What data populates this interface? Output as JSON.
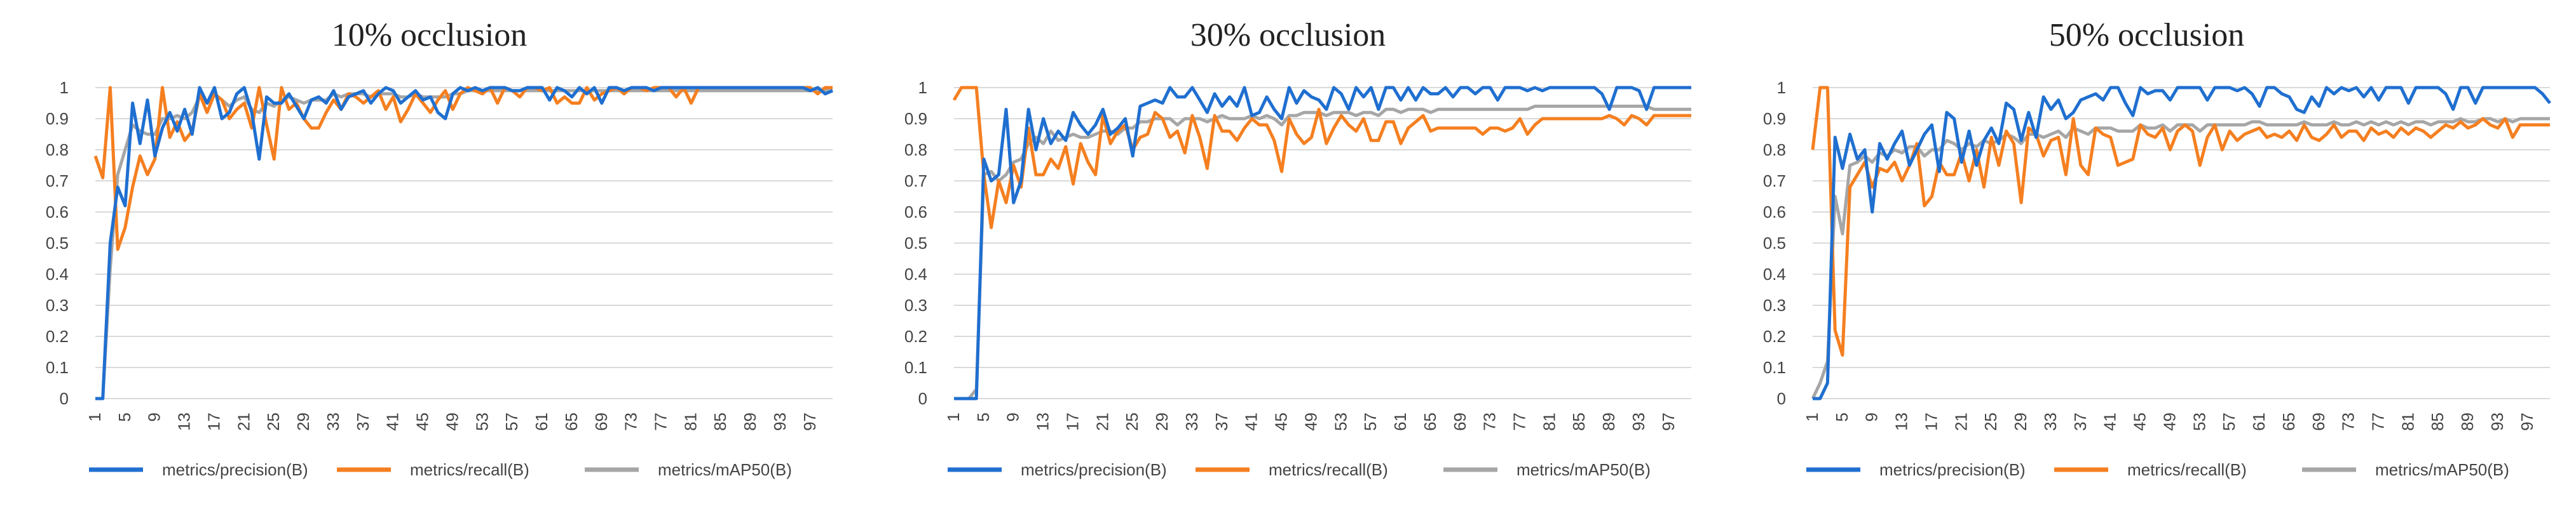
{
  "colors": {
    "precision": "#1f6fd0",
    "recall": "#f57f20",
    "map50": "#a6a6a6",
    "grid": "#d9d9d9",
    "text": "#444444"
  },
  "chart_data": [
    {
      "type": "line",
      "title": "10% occlusion",
      "ylim": [
        0,
        1
      ],
      "yticks": [
        "0",
        "0.1",
        "0.2",
        "0.3",
        "0.4",
        "0.5",
        "0.6",
        "0.7",
        "0.8",
        "0.9",
        "1"
      ],
      "xlim": [
        1,
        100
      ],
      "xticks": [
        "1",
        "5",
        "9",
        "13",
        "17",
        "21",
        "25",
        "29",
        "33",
        "37",
        "41",
        "45",
        "49",
        "53",
        "57",
        "61",
        "65",
        "69",
        "73",
        "77",
        "81",
        "85",
        "89",
        "93",
        "97"
      ],
      "legend_position": "bottom",
      "series": [
        {
          "name": "metrics/precision(B)",
          "color": "#1f6fd0",
          "values": [
            0,
            0,
            0.5,
            0.68,
            0.62,
            0.95,
            0.82,
            0.96,
            0.78,
            0.87,
            0.92,
            0.86,
            0.93,
            0.85,
            1,
            0.95,
            1,
            0.9,
            0.92,
            0.98,
            1,
            0.92,
            0.77,
            0.97,
            0.95,
            0.95,
            0.98,
            0.94,
            0.9,
            0.96,
            0.97,
            0.95,
            0.99,
            0.93,
            0.97,
            0.98,
            0.99,
            0.95,
            0.98,
            1,
            0.99,
            0.95,
            0.97,
            0.99,
            0.96,
            0.97,
            0.92,
            0.9,
            0.98,
            1,
            0.99,
            1,
            0.99,
            1,
            1,
            1,
            0.99,
            0.99,
            1,
            1,
            1,
            0.96,
            1,
            0.99,
            0.97,
            1,
            0.98,
            1,
            0.95,
            1,
            1,
            0.99,
            1,
            1,
            1,
            0.99,
            1,
            1,
            1,
            1,
            1,
            1,
            1,
            1,
            1,
            1,
            1,
            1,
            1,
            1,
            1,
            1,
            1,
            1,
            1,
            1,
            0.99,
            1,
            0.98,
            0.99
          ]
        },
        {
          "name": "metrics/recall(B)",
          "color": "#f57f20",
          "values": [
            0.78,
            0.71,
            1,
            0.48,
            0.55,
            0.68,
            0.78,
            0.72,
            0.77,
            1,
            0.84,
            0.89,
            0.83,
            0.86,
            0.98,
            0.92,
            0.98,
            0.96,
            0.9,
            0.93,
            0.95,
            0.87,
            1,
            0.88,
            0.77,
            1,
            0.93,
            0.95,
            0.9,
            0.87,
            0.87,
            0.92,
            0.96,
            0.93,
            0.98,
            0.97,
            0.95,
            0.97,
            0.99,
            0.93,
            0.97,
            0.89,
            0.93,
            0.98,
            0.95,
            0.92,
            0.96,
            0.99,
            0.93,
            0.98,
            1,
            0.99,
            0.98,
            1,
            0.95,
            1,
            0.99,
            0.97,
            1,
            1,
            0.99,
            1,
            0.95,
            0.97,
            0.95,
            0.95,
            1,
            0.96,
            0.98,
            0.99,
            1,
            0.98,
            1,
            1,
            0.99,
            1,
            1,
            1,
            0.97,
            1,
            0.95,
            1,
            1,
            1,
            1,
            1,
            1,
            1,
            1,
            1,
            1,
            1,
            1,
            1,
            1,
            1,
            1,
            0.98,
            1,
            1
          ]
        },
        {
          "name": "metrics/mAP50(B)",
          "color": "#a6a6a6",
          "values": [
            0,
            0,
            0.42,
            0.72,
            0.8,
            0.88,
            0.86,
            0.85,
            0.85,
            0.9,
            0.9,
            0.91,
            0.9,
            0.92,
            0.97,
            0.95,
            0.98,
            0.96,
            0.94,
            0.96,
            0.97,
            0.93,
            0.92,
            0.95,
            0.94,
            0.96,
            0.97,
            0.96,
            0.95,
            0.96,
            0.96,
            0.96,
            0.98,
            0.97,
            0.98,
            0.98,
            0.98,
            0.97,
            0.98,
            0.98,
            0.98,
            0.97,
            0.97,
            0.98,
            0.97,
            0.97,
            0.97,
            0.97,
            0.98,
            0.98,
            0.99,
            0.99,
            0.99,
            0.99,
            0.99,
            0.99,
            0.99,
            0.99,
            0.99,
            0.99,
            0.99,
            0.99,
            0.99,
            0.99,
            0.99,
            0.99,
            0.99,
            0.99,
            0.99,
            0.99,
            0.99,
            0.99,
            0.99,
            0.99,
            0.99,
            0.99,
            0.99,
            0.99,
            0.99,
            0.99,
            0.99,
            0.99,
            0.99,
            0.99,
            0.99,
            0.99,
            0.99,
            0.99,
            0.99,
            0.99,
            0.99,
            0.99,
            0.99,
            0.99,
            0.99,
            0.99,
            0.99,
            0.99,
            0.99,
            0.99
          ]
        }
      ]
    },
    {
      "type": "line",
      "title": "30% occlusion",
      "ylim": [
        0,
        1
      ],
      "yticks": [
        "0",
        "0.1",
        "0.2",
        "0.3",
        "0.4",
        "0.5",
        "0.6",
        "0.7",
        "0.8",
        "0.9",
        "1"
      ],
      "xlim": [
        1,
        100
      ],
      "xticks": [
        "1",
        "5",
        "9",
        "13",
        "17",
        "21",
        "25",
        "29",
        "33",
        "37",
        "41",
        "45",
        "49",
        "53",
        "57",
        "61",
        "65",
        "69",
        "73",
        "77",
        "81",
        "85",
        "89",
        "93",
        "97"
      ],
      "legend_position": "bottom",
      "series": [
        {
          "name": "metrics/precision(B)",
          "color": "#1f6fd0",
          "values": [
            0,
            0,
            0,
            0,
            0.77,
            0.7,
            0.72,
            0.93,
            0.63,
            0.7,
            0.93,
            0.8,
            0.9,
            0.82,
            0.86,
            0.83,
            0.92,
            0.88,
            0.85,
            0.88,
            0.93,
            0.85,
            0.87,
            0.9,
            0.78,
            0.94,
            0.95,
            0.96,
            0.95,
            1,
            0.97,
            0.97,
            1,
            0.96,
            0.92,
            0.98,
            0.94,
            0.97,
            0.94,
            1,
            0.91,
            0.92,
            0.97,
            0.93,
            0.9,
            1,
            0.95,
            0.99,
            0.97,
            0.96,
            0.93,
            1,
            0.98,
            0.93,
            1,
            0.97,
            1,
            0.93,
            1,
            1,
            0.96,
            1,
            0.96,
            1,
            0.98,
            0.98,
            1,
            0.97,
            1,
            1,
            0.98,
            1,
            1,
            0.96,
            1,
            1,
            1,
            0.99,
            1,
            0.99,
            1,
            1,
            1,
            1,
            1,
            1,
            1,
            0.98,
            0.93,
            1,
            1,
            1,
            0.99,
            0.93,
            1,
            1,
            1,
            1,
            1,
            1
          ]
        },
        {
          "name": "metrics/recall(B)",
          "color": "#f57f20",
          "values": [
            0.96,
            1,
            1,
            1,
            0.72,
            0.55,
            0.7,
            0.63,
            0.75,
            0.68,
            0.87,
            0.72,
            0.72,
            0.77,
            0.74,
            0.81,
            0.69,
            0.82,
            0.76,
            0.72,
            0.91,
            0.82,
            0.86,
            0.88,
            0.8,
            0.84,
            0.85,
            0.92,
            0.9,
            0.84,
            0.86,
            0.79,
            0.91,
            0.84,
            0.74,
            0.91,
            0.86,
            0.86,
            0.83,
            0.87,
            0.9,
            0.88,
            0.88,
            0.83,
            0.73,
            0.9,
            0.85,
            0.82,
            0.84,
            0.93,
            0.82,
            0.87,
            0.91,
            0.88,
            0.86,
            0.9,
            0.83,
            0.83,
            0.89,
            0.89,
            0.82,
            0.87,
            0.89,
            0.91,
            0.86,
            0.87,
            0.87,
            0.87,
            0.87,
            0.87,
            0.87,
            0.85,
            0.87,
            0.87,
            0.86,
            0.87,
            0.9,
            0.85,
            0.88,
            0.9,
            0.9,
            0.9,
            0.9,
            0.9,
            0.9,
            0.9,
            0.9,
            0.9,
            0.91,
            0.9,
            0.88,
            0.91,
            0.9,
            0.88,
            0.91,
            0.91,
            0.91,
            0.91,
            0.91,
            0.91
          ]
        },
        {
          "name": "metrics/mAP50(B)",
          "color": "#a6a6a6",
          "values": [
            0,
            0,
            0,
            0.03,
            0.72,
            0.73,
            0.7,
            0.72,
            0.76,
            0.77,
            0.82,
            0.84,
            0.82,
            0.86,
            0.83,
            0.84,
            0.85,
            0.84,
            0.84,
            0.85,
            0.86,
            0.86,
            0.85,
            0.87,
            0.87,
            0.89,
            0.89,
            0.9,
            0.9,
            0.9,
            0.88,
            0.9,
            0.9,
            0.9,
            0.89,
            0.9,
            0.91,
            0.9,
            0.9,
            0.9,
            0.91,
            0.9,
            0.91,
            0.9,
            0.88,
            0.91,
            0.91,
            0.92,
            0.92,
            0.92,
            0.91,
            0.92,
            0.92,
            0.92,
            0.91,
            0.92,
            0.92,
            0.91,
            0.93,
            0.93,
            0.92,
            0.93,
            0.93,
            0.93,
            0.92,
            0.93,
            0.93,
            0.93,
            0.93,
            0.93,
            0.93,
            0.93,
            0.93,
            0.93,
            0.93,
            0.93,
            0.93,
            0.93,
            0.94,
            0.94,
            0.94,
            0.94,
            0.94,
            0.94,
            0.94,
            0.94,
            0.94,
            0.94,
            0.94,
            0.94,
            0.94,
            0.94,
            0.94,
            0.94,
            0.93,
            0.93,
            0.93,
            0.93,
            0.93,
            0.93
          ]
        }
      ]
    },
    {
      "type": "line",
      "title": "50% occlusion",
      "ylim": [
        0,
        1
      ],
      "yticks": [
        "0",
        "0.1",
        "0.2",
        "0.3",
        "0.4",
        "0.5",
        "0.6",
        "0.7",
        "0.8",
        "0.9",
        "1"
      ],
      "xlim": [
        1,
        100
      ],
      "xticks": [
        "1",
        "5",
        "9",
        "13",
        "17",
        "21",
        "25",
        "29",
        "33",
        "37",
        "41",
        "45",
        "49",
        "53",
        "57",
        "61",
        "65",
        "69",
        "73",
        "77",
        "81",
        "85",
        "89",
        "93",
        "97"
      ],
      "legend_position": "bottom",
      "series": [
        {
          "name": "metrics/precision(B)",
          "color": "#1f6fd0",
          "values": [
            0,
            0,
            0.05,
            0.84,
            0.74,
            0.85,
            0.77,
            0.8,
            0.6,
            0.82,
            0.77,
            0.82,
            0.86,
            0.75,
            0.8,
            0.85,
            0.88,
            0.73,
            0.92,
            0.9,
            0.76,
            0.86,
            0.75,
            0.83,
            0.87,
            0.82,
            0.95,
            0.93,
            0.83,
            0.92,
            0.84,
            0.97,
            0.93,
            0.96,
            0.9,
            0.92,
            0.96,
            0.97,
            0.98,
            0.96,
            1,
            1,
            0.95,
            0.91,
            1,
            0.98,
            0.99,
            0.99,
            0.96,
            1,
            1,
            1,
            1,
            0.96,
            1,
            1,
            1,
            0.99,
            1,
            0.98,
            0.94,
            1,
            1,
            0.98,
            0.97,
            0.93,
            0.92,
            0.97,
            0.94,
            1,
            0.98,
            1,
            0.99,
            1,
            0.97,
            1,
            0.96,
            1,
            1,
            1,
            0.95,
            1,
            1,
            1,
            1,
            0.98,
            0.93,
            1,
            1,
            0.95,
            1,
            1,
            1,
            1,
            1,
            1,
            1,
            1,
            0.98,
            0.95
          ]
        },
        {
          "name": "metrics/recall(B)",
          "color": "#f57f20",
          "values": [
            0.8,
            1,
            1,
            0.22,
            0.14,
            0.68,
            0.72,
            0.76,
            0.68,
            0.74,
            0.73,
            0.76,
            0.7,
            0.75,
            0.82,
            0.62,
            0.65,
            0.76,
            0.72,
            0.72,
            0.79,
            0.7,
            0.8,
            0.68,
            0.84,
            0.75,
            0.86,
            0.82,
            0.63,
            0.87,
            0.85,
            0.78,
            0.83,
            0.84,
            0.72,
            0.9,
            0.75,
            0.72,
            0.87,
            0.85,
            0.84,
            0.75,
            0.76,
            0.77,
            0.88,
            0.85,
            0.84,
            0.87,
            0.8,
            0.86,
            0.88,
            0.86,
            0.75,
            0.84,
            0.88,
            0.8,
            0.86,
            0.83,
            0.85,
            0.86,
            0.87,
            0.84,
            0.85,
            0.84,
            0.86,
            0.83,
            0.88,
            0.84,
            0.83,
            0.85,
            0.88,
            0.84,
            0.86,
            0.86,
            0.83,
            0.87,
            0.85,
            0.86,
            0.84,
            0.87,
            0.85,
            0.87,
            0.86,
            0.84,
            0.86,
            0.88,
            0.87,
            0.89,
            0.87,
            0.88,
            0.9,
            0.88,
            0.87,
            0.9,
            0.84,
            0.88,
            0.88,
            0.88,
            0.88,
            0.88
          ]
        },
        {
          "name": "metrics/mAP50(B)",
          "color": "#a6a6a6",
          "values": [
            0,
            0.05,
            0.12,
            0.65,
            0.53,
            0.75,
            0.76,
            0.78,
            0.76,
            0.79,
            0.78,
            0.8,
            0.79,
            0.81,
            0.81,
            0.78,
            0.8,
            0.8,
            0.83,
            0.82,
            0.8,
            0.82,
            0.81,
            0.83,
            0.82,
            0.83,
            0.85,
            0.84,
            0.82,
            0.85,
            0.85,
            0.84,
            0.85,
            0.86,
            0.84,
            0.87,
            0.86,
            0.85,
            0.87,
            0.87,
            0.87,
            0.86,
            0.86,
            0.86,
            0.88,
            0.87,
            0.87,
            0.88,
            0.86,
            0.88,
            0.88,
            0.88,
            0.86,
            0.88,
            0.88,
            0.88,
            0.88,
            0.88,
            0.88,
            0.89,
            0.89,
            0.88,
            0.88,
            0.88,
            0.88,
            0.88,
            0.89,
            0.88,
            0.88,
            0.88,
            0.89,
            0.88,
            0.88,
            0.89,
            0.88,
            0.89,
            0.88,
            0.89,
            0.88,
            0.89,
            0.88,
            0.89,
            0.89,
            0.88,
            0.89,
            0.89,
            0.89,
            0.9,
            0.89,
            0.89,
            0.9,
            0.9,
            0.89,
            0.9,
            0.89,
            0.9,
            0.9,
            0.9,
            0.9,
            0.9
          ]
        }
      ]
    }
  ]
}
